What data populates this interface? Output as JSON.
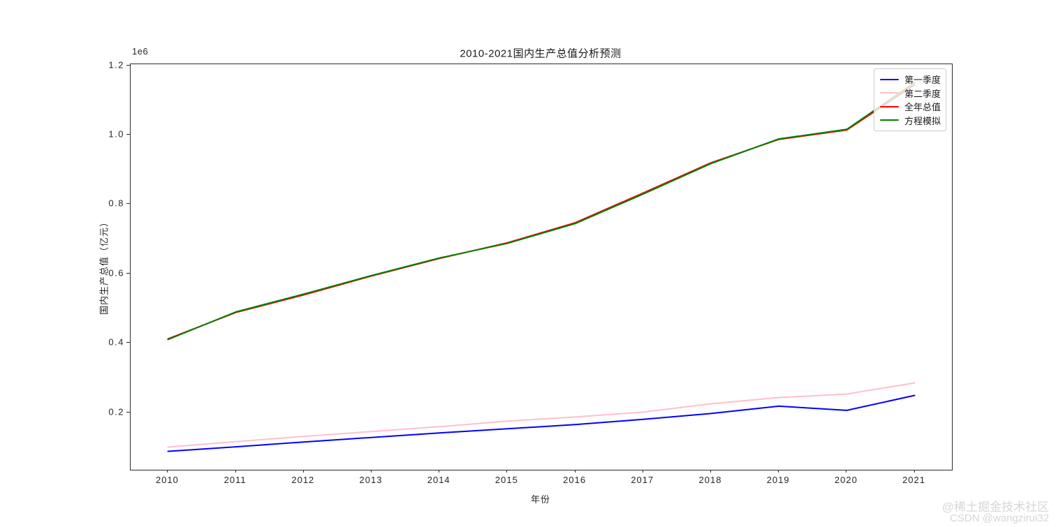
{
  "chart_data": {
    "type": "line",
    "title": "2010-2021国内生产总值分析预测",
    "xlabel": "年份",
    "ylabel": "国内生产总值（亿元）",
    "offset_text": "1e6",
    "unit_note": "values in 亿元, y axis shown as multiples of 1e6",
    "x": [
      2010,
      2011,
      2012,
      2013,
      2014,
      2015,
      2016,
      2017,
      2018,
      2019,
      2020,
      2021
    ],
    "series": [
      {
        "name": "第一季度",
        "color": "#0000ff",
        "values": [
          88000,
          101000,
          115000,
          128000,
          141000,
          153000,
          165000,
          180000,
          197000,
          218000,
          206000,
          249000
        ]
      },
      {
        "name": "第二季度",
        "color": "#ffc0cb",
        "values": [
          100000,
          116000,
          131000,
          145000,
          159000,
          175000,
          187000,
          201000,
          225000,
          243000,
          253000,
          285000
        ]
      },
      {
        "name": "全年总值",
        "color": "#ff0000",
        "values": [
          412119,
          487940,
          538580,
          592963,
          643563,
          688858,
          746395,
          832036,
          919281,
          986515,
          1013567,
          1143670
        ]
      },
      {
        "name": "方程模拟",
        "color": "#008000",
        "values": [
          410000,
          489500,
          541000,
          594500,
          645000,
          687000,
          744000,
          829000,
          917000,
          988000,
          1015500,
          1150000
        ]
      }
    ],
    "xlim": [
      2009.45,
      2021.55
    ],
    "ylim": [
      34900,
      1203100
    ],
    "x_ticks": {
      "values": [
        2010,
        2011,
        2012,
        2013,
        2014,
        2015,
        2016,
        2017,
        2018,
        2019,
        2020,
        2021
      ],
      "labels": [
        "2010",
        "2011",
        "2012",
        "2013",
        "2014",
        "2015",
        "2016",
        "2017",
        "2018",
        "2019",
        "2020",
        "2021"
      ]
    },
    "y_ticks": {
      "values": [
        200000,
        400000,
        600000,
        800000,
        1000000,
        1200000
      ],
      "labels": [
        "0.2",
        "0.4",
        "0.6",
        "0.8",
        "1.0",
        "1.2"
      ]
    },
    "grid": false,
    "legend_position": "upper right"
  },
  "watermark": {
    "line1": "@稀土掘金技术社区",
    "line2": "CSDN @wangzirui32"
  }
}
